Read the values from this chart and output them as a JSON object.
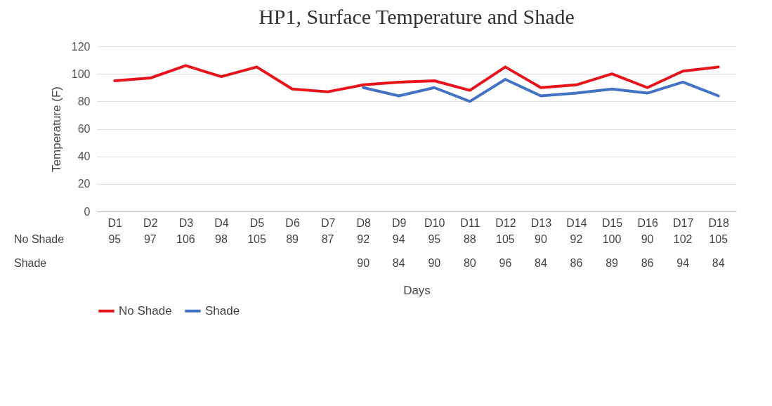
{
  "chart_data": {
    "type": "line",
    "title": "HP1, Surface Temperature and Shade",
    "xlabel": "Days",
    "ylabel": "Temperature (F)",
    "categories": [
      "D1",
      "D2",
      "D3",
      "D4",
      "D5",
      "D6",
      "D7",
      "D8",
      "D9",
      "D10",
      "D11",
      "D12",
      "D13",
      "D14",
      "D15",
      "D16",
      "D17",
      "D18"
    ],
    "series": [
      {
        "name": "No Shade",
        "color": "#e8141b",
        "values": [
          95,
          97,
          106,
          98,
          105,
          89,
          87,
          92,
          94,
          95,
          88,
          105,
          90,
          92,
          100,
          90,
          102,
          105
        ]
      },
      {
        "name": "Shade",
        "color": "#4472c4",
        "values": [
          null,
          null,
          null,
          null,
          null,
          null,
          null,
          90,
          84,
          90,
          80,
          96,
          84,
          86,
          89,
          86,
          94,
          84
        ]
      }
    ],
    "ylim": [
      0,
      120
    ],
    "yticks": [
      0,
      20,
      40,
      60,
      80,
      100,
      120
    ],
    "grid": "y",
    "legend": "bottom",
    "data_labels": true,
    "line_style": "solid"
  }
}
